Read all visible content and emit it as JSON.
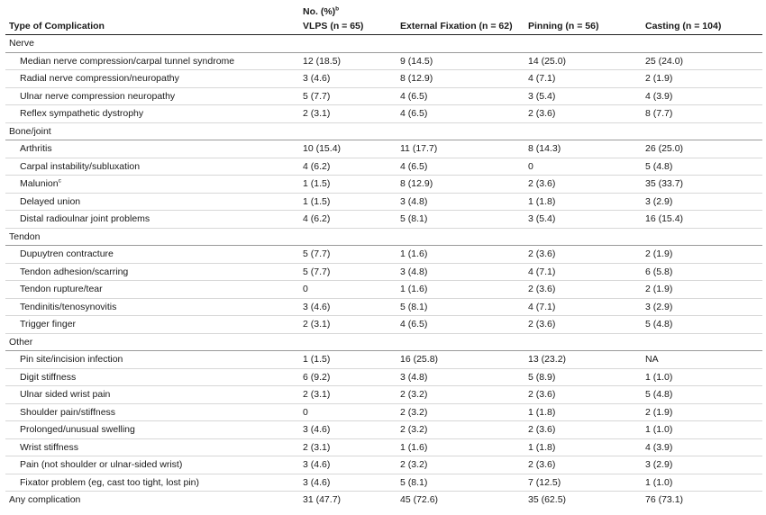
{
  "header": {
    "group_label": "No. (%)",
    "group_label_sup": "b",
    "columns": [
      "Type of Complication",
      "VLPS (n = 65)",
      "External Fixation (n = 62)",
      "Pinning (n = 56)",
      "Casting (n = 104)"
    ]
  },
  "sections": [
    {
      "name": "Nerve",
      "rows": [
        {
          "label": "Median nerve compression/carpal tunnel syndrome",
          "sup": "",
          "values": [
            "12 (18.5)",
            "9 (14.5)",
            "14 (25.0)",
            "25 (24.0)"
          ]
        },
        {
          "label": "Radial nerve compression/neuropathy",
          "sup": "",
          "values": [
            "3 (4.6)",
            "8 (12.9)",
            "4 (7.1)",
            "2 (1.9)"
          ]
        },
        {
          "label": "Ulnar nerve compression neuropathy",
          "sup": "",
          "values": [
            "5 (7.7)",
            "4 (6.5)",
            "3 (5.4)",
            "4 (3.9)"
          ]
        },
        {
          "label": "Reflex sympathetic dystrophy",
          "sup": "",
          "values": [
            "2 (3.1)",
            "4 (6.5)",
            "2 (3.6)",
            "8 (7.7)"
          ]
        }
      ]
    },
    {
      "name": "Bone/joint",
      "rows": [
        {
          "label": "Arthritis",
          "sup": "",
          "values": [
            "10 (15.4)",
            "11 (17.7)",
            "8 (14.3)",
            "26 (25.0)"
          ]
        },
        {
          "label": "Carpal instability/subluxation",
          "sup": "",
          "values": [
            "4 (6.2)",
            "4 (6.5)",
            "0",
            "5 (4.8)"
          ]
        },
        {
          "label": "Malunion",
          "sup": "c",
          "values": [
            "1 (1.5)",
            "8 (12.9)",
            "2 (3.6)",
            "35 (33.7)"
          ]
        },
        {
          "label": "Delayed union",
          "sup": "",
          "values": [
            "1 (1.5)",
            "3 (4.8)",
            "1 (1.8)",
            "3 (2.9)"
          ]
        },
        {
          "label": "Distal radioulnar joint problems",
          "sup": "",
          "values": [
            "4 (6.2)",
            "5 (8.1)",
            "3 (5.4)",
            "16 (15.4)"
          ]
        }
      ]
    },
    {
      "name": "Tendon",
      "rows": [
        {
          "label": "Dupuytren contracture",
          "sup": "",
          "values": [
            "5 (7.7)",
            "1 (1.6)",
            "2 (3.6)",
            "2 (1.9)"
          ]
        },
        {
          "label": "Tendon adhesion/scarring",
          "sup": "",
          "values": [
            "5 (7.7)",
            "3 (4.8)",
            "4 (7.1)",
            "6 (5.8)"
          ]
        },
        {
          "label": "Tendon rupture/tear",
          "sup": "",
          "values": [
            "0",
            "1 (1.6)",
            "2 (3.6)",
            "2 (1.9)"
          ]
        },
        {
          "label": "Tendinitis/tenosynovitis",
          "sup": "",
          "values": [
            "3 (4.6)",
            "5 (8.1)",
            "4 (7.1)",
            "3 (2.9)"
          ]
        },
        {
          "label": "Trigger finger",
          "sup": "",
          "values": [
            "2 (3.1)",
            "4 (6.5)",
            "2 (3.6)",
            "5 (4.8)"
          ]
        }
      ]
    },
    {
      "name": "Other",
      "rows": [
        {
          "label": "Pin site/incision infection",
          "sup": "",
          "values": [
            "1 (1.5)",
            "16 (25.8)",
            "13 (23.2)",
            "NA"
          ]
        },
        {
          "label": "Digit stiffness",
          "sup": "",
          "values": [
            "6 (9.2)",
            "3 (4.8)",
            "5 (8.9)",
            "1 (1.0)"
          ]
        },
        {
          "label": "Ulnar sided wrist pain",
          "sup": "",
          "values": [
            "2 (3.1)",
            "2 (3.2)",
            "2 (3.6)",
            "5 (4.8)"
          ]
        },
        {
          "label": "Shoulder pain/stiffness",
          "sup": "",
          "values": [
            "0",
            "2 (3.2)",
            "1 (1.8)",
            "2 (1.9)"
          ]
        },
        {
          "label": "Prolonged/unusual swelling",
          "sup": "",
          "values": [
            "3 (4.6)",
            "2 (3.2)",
            "2 (3.6)",
            "1 (1.0)"
          ]
        },
        {
          "label": "Wrist stiffness",
          "sup": "",
          "values": [
            "2 (3.1)",
            "1 (1.6)",
            "1 (1.8)",
            "4 (3.9)"
          ]
        },
        {
          "label": "Pain (not shoulder or ulnar-sided wrist)",
          "sup": "",
          "values": [
            "3 (4.6)",
            "2 (3.2)",
            "2 (3.6)",
            "3 (2.9)"
          ]
        },
        {
          "label": "Fixator problem (eg, cast too tight, lost pin)",
          "sup": "",
          "values": [
            "3 (4.6)",
            "5 (8.1)",
            "7 (12.5)",
            "1 (1.0)"
          ]
        }
      ]
    }
  ],
  "total": {
    "label": "Any complication",
    "values": [
      "31 (47.7)",
      "45 (72.6)",
      "35 (62.5)",
      "76 (73.1)"
    ]
  }
}
